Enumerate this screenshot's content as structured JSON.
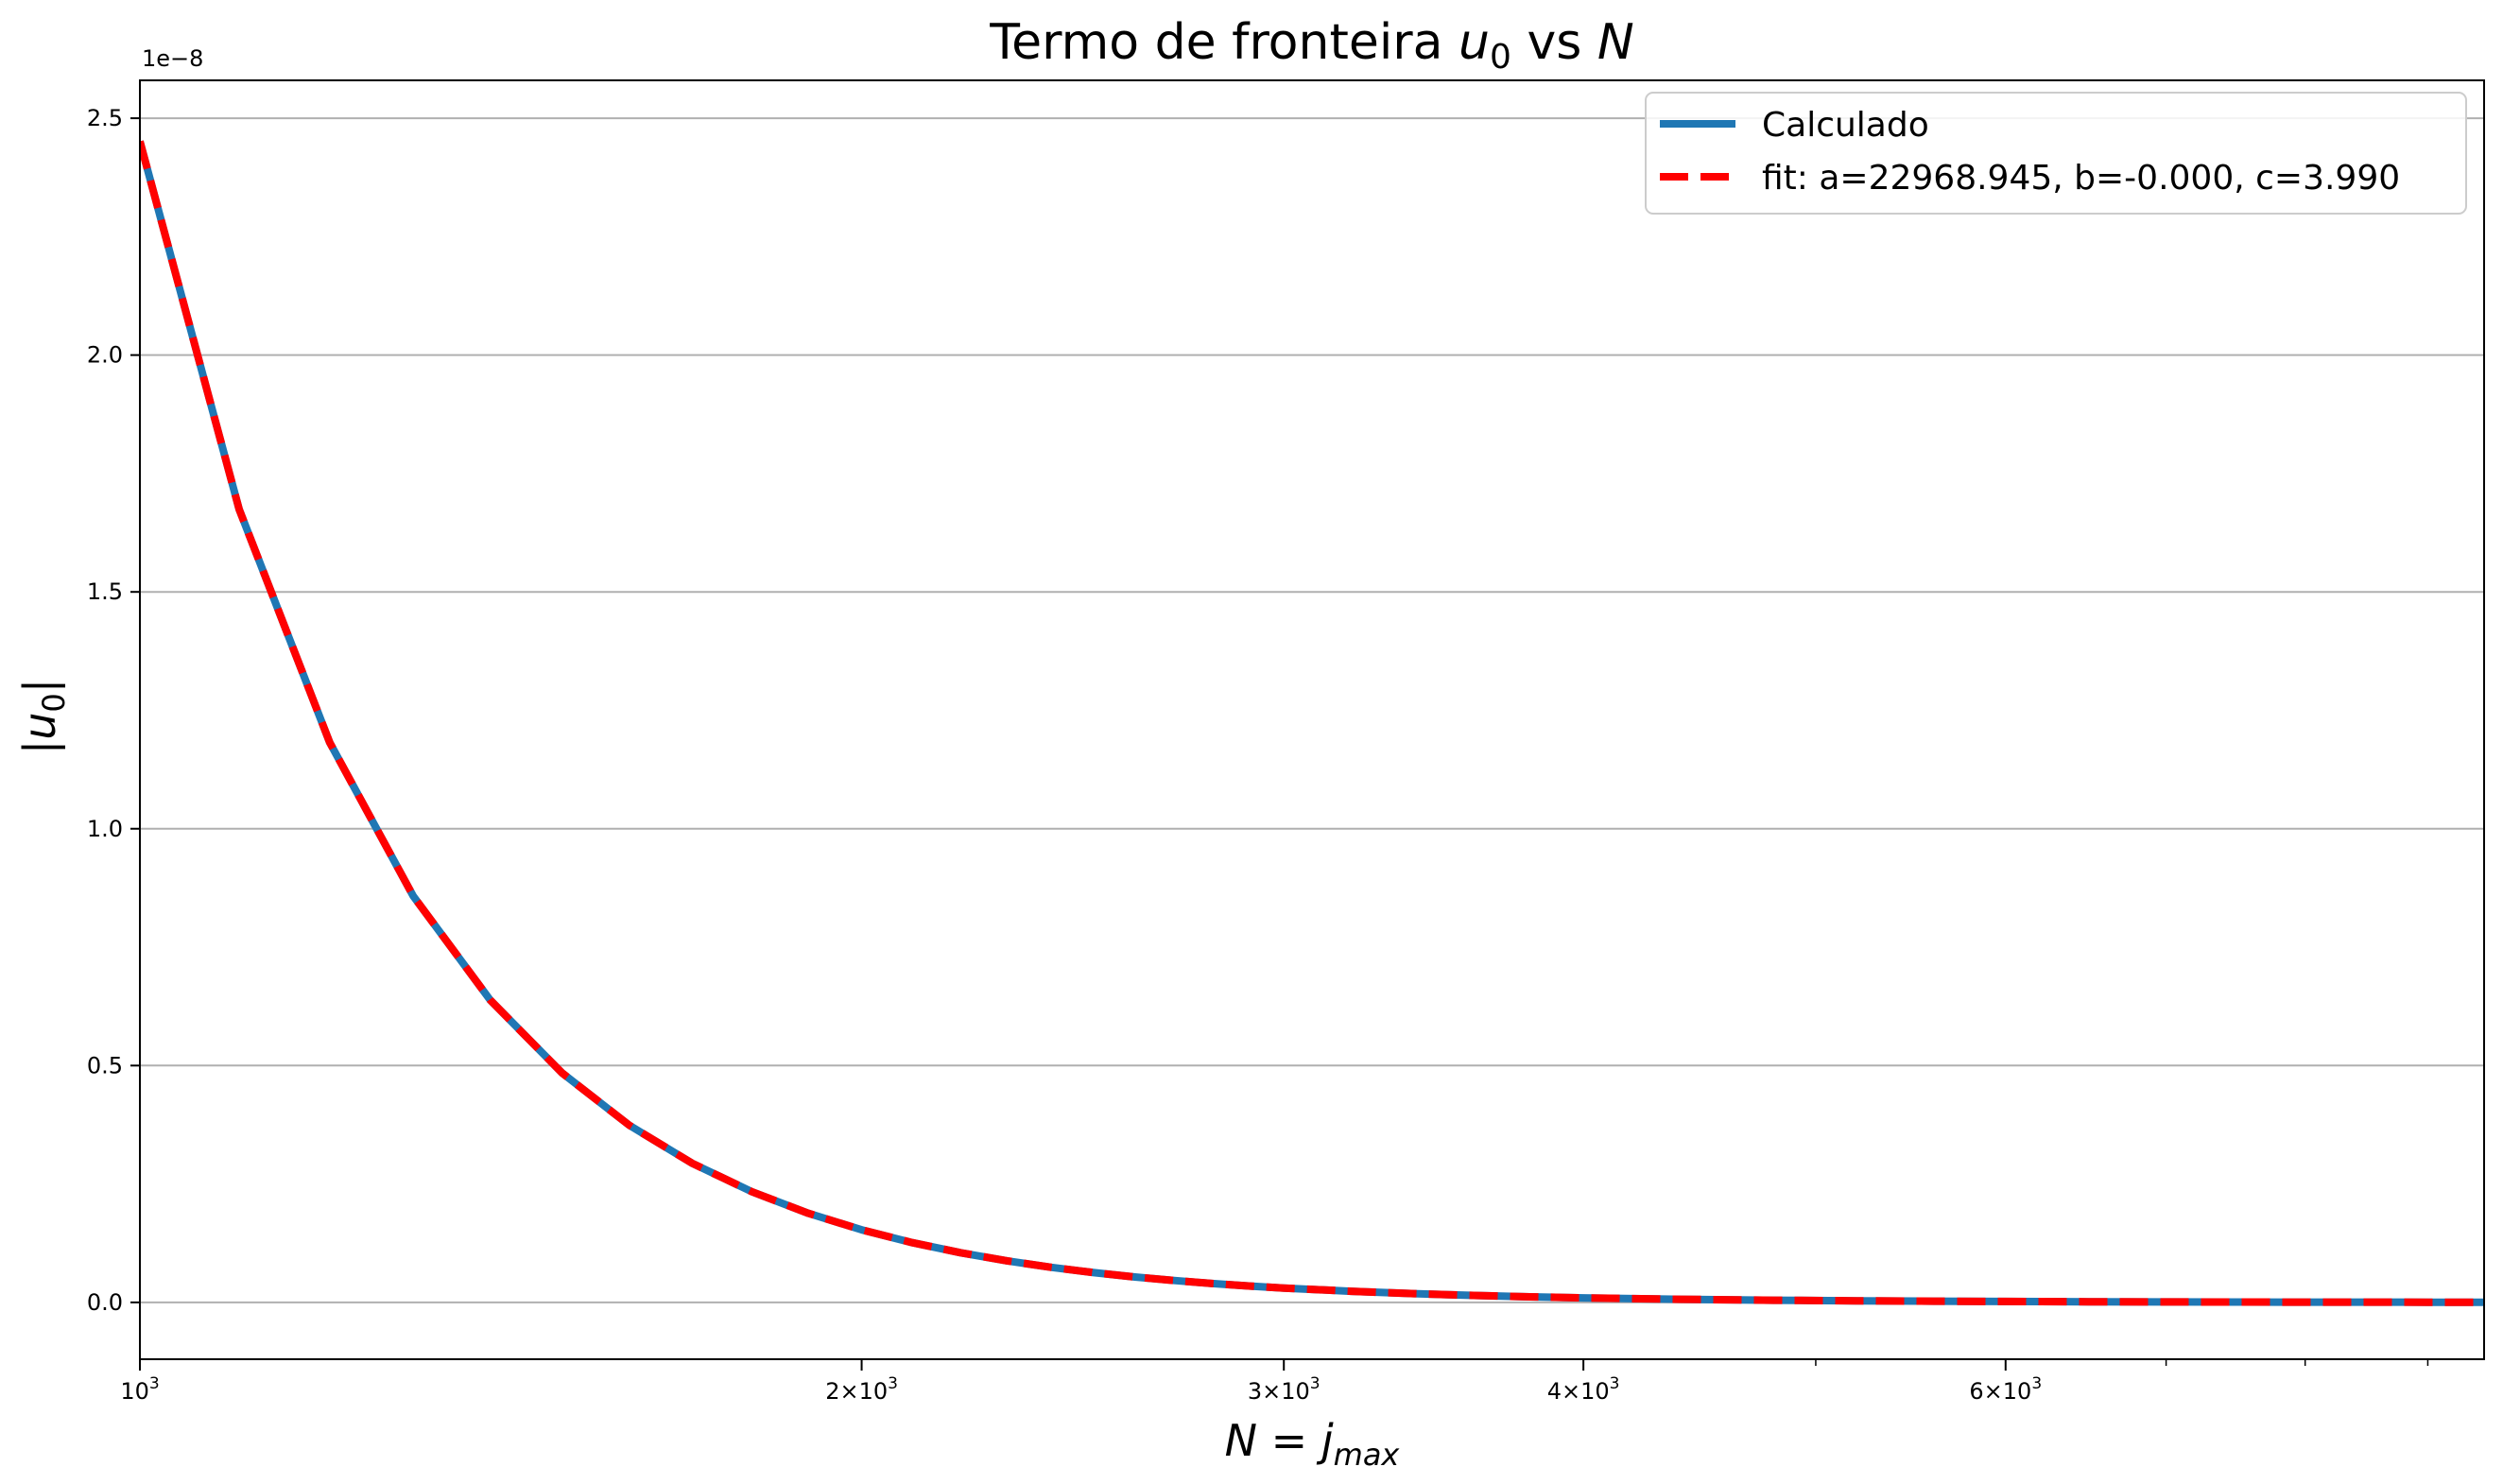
{
  "chart_data": {
    "type": "line",
    "title_main": "Termo de fronteira ",
    "title_var": "u",
    "title_sub": "0",
    "title_mid": " vs ",
    "title_end": "N",
    "xlabel_n": "N",
    "xlabel_eq": " = ",
    "xlabel_j": "j",
    "xlabel_sub": "max",
    "ylabel_bar": "|",
    "ylabel_u": "u",
    "ylabel_sub": "0",
    "ylabel_bar2": "|",
    "y_offset_text": "1e−8",
    "xscale": "log",
    "xlim": [
      1000,
      9500
    ],
    "ylim": [
      -0.12,
      2.58
    ],
    "y_multiplier": 1e-08,
    "grid": "y-major",
    "legend_position": "top-right",
    "x_ticks": [
      {
        "value": 1000,
        "base": "10",
        "exp": "3",
        "prefix": ""
      },
      {
        "value": 2000,
        "base": "10",
        "exp": "3",
        "prefix": "2×"
      },
      {
        "value": 3000,
        "base": "10",
        "exp": "3",
        "prefix": "3×"
      },
      {
        "value": 4000,
        "base": "10",
        "exp": "3",
        "prefix": "4×"
      },
      {
        "value": 6000,
        "base": "10",
        "exp": "3",
        "prefix": "6×"
      }
    ],
    "x_minor_ticks": [
      5000,
      7000,
      8000,
      9000
    ],
    "y_ticks": [
      {
        "value": 0.0,
        "label": "0.0"
      },
      {
        "value": 0.5,
        "label": "0.5"
      },
      {
        "value": 1.0,
        "label": "1.0"
      },
      {
        "value": 1.5,
        "label": "1.5"
      },
      {
        "value": 2.0,
        "label": "2.0"
      },
      {
        "value": 2.5,
        "label": "2.5"
      }
    ],
    "series": [
      {
        "name": "Calculado",
        "color": "#1f77b4",
        "style": "solid",
        "x": [
          1000,
          1100,
          1200,
          1300,
          1400,
          1500,
          1600,
          1700,
          1800,
          1900,
          2000,
          2100,
          2200,
          2300,
          2400,
          2500,
          2600,
          2700,
          2800,
          2900,
          3000,
          3200,
          3400,
          3600,
          3800,
          4000,
          4400,
          4800,
          5200,
          5600,
          6000,
          6500,
          7000,
          7500,
          8000,
          8500,
          9000,
          9500
        ],
        "y": [
          2.4512,
          1.6744,
          1.1822,
          0.8584,
          0.6381,
          0.4842,
          0.374,
          0.2935,
          0.2336,
          0.1882,
          0.1532,
          0.1261,
          0.1047,
          0.0877,
          0.0739,
          0.0628,
          0.0537,
          0.0462,
          0.0399,
          0.0347,
          0.0303,
          0.0234,
          0.0184,
          0.0147,
          0.0118,
          0.0096,
          0.0066,
          0.0046,
          0.0034,
          0.0025,
          0.0019,
          0.0014,
          0.001,
          0.0008,
          0.0006,
          0.0005,
          0.0004,
          0.0003
        ]
      },
      {
        "name": "fit: a=22968.945, b=-0.000, c=3.990",
        "color": "#ff0000",
        "style": "dashed",
        "x": [
          1000,
          1100,
          1200,
          1300,
          1400,
          1500,
          1600,
          1700,
          1800,
          1900,
          2000,
          2100,
          2200,
          2300,
          2400,
          2500,
          2600,
          2700,
          2800,
          2900,
          3000,
          3200,
          3400,
          3600,
          3800,
          4000,
          4400,
          4800,
          5200,
          5600,
          6000,
          6500,
          7000,
          7500,
          8000,
          8500,
          9000,
          9500
        ],
        "y": [
          2.4512,
          1.6744,
          1.1822,
          0.8584,
          0.6381,
          0.4842,
          0.374,
          0.2935,
          0.2336,
          0.1882,
          0.1532,
          0.1261,
          0.1047,
          0.0877,
          0.0739,
          0.0628,
          0.0537,
          0.0462,
          0.0399,
          0.0347,
          0.0303,
          0.0234,
          0.0184,
          0.0147,
          0.0118,
          0.0096,
          0.0066,
          0.0046,
          0.0034,
          0.0025,
          0.0019,
          0.0014,
          0.001,
          0.0008,
          0.0006,
          0.0005,
          0.0004,
          0.0003
        ]
      }
    ],
    "colors": {
      "grid": "#b0b0b0",
      "axes": "#000000",
      "legend_border": "#cccccc"
    }
  }
}
